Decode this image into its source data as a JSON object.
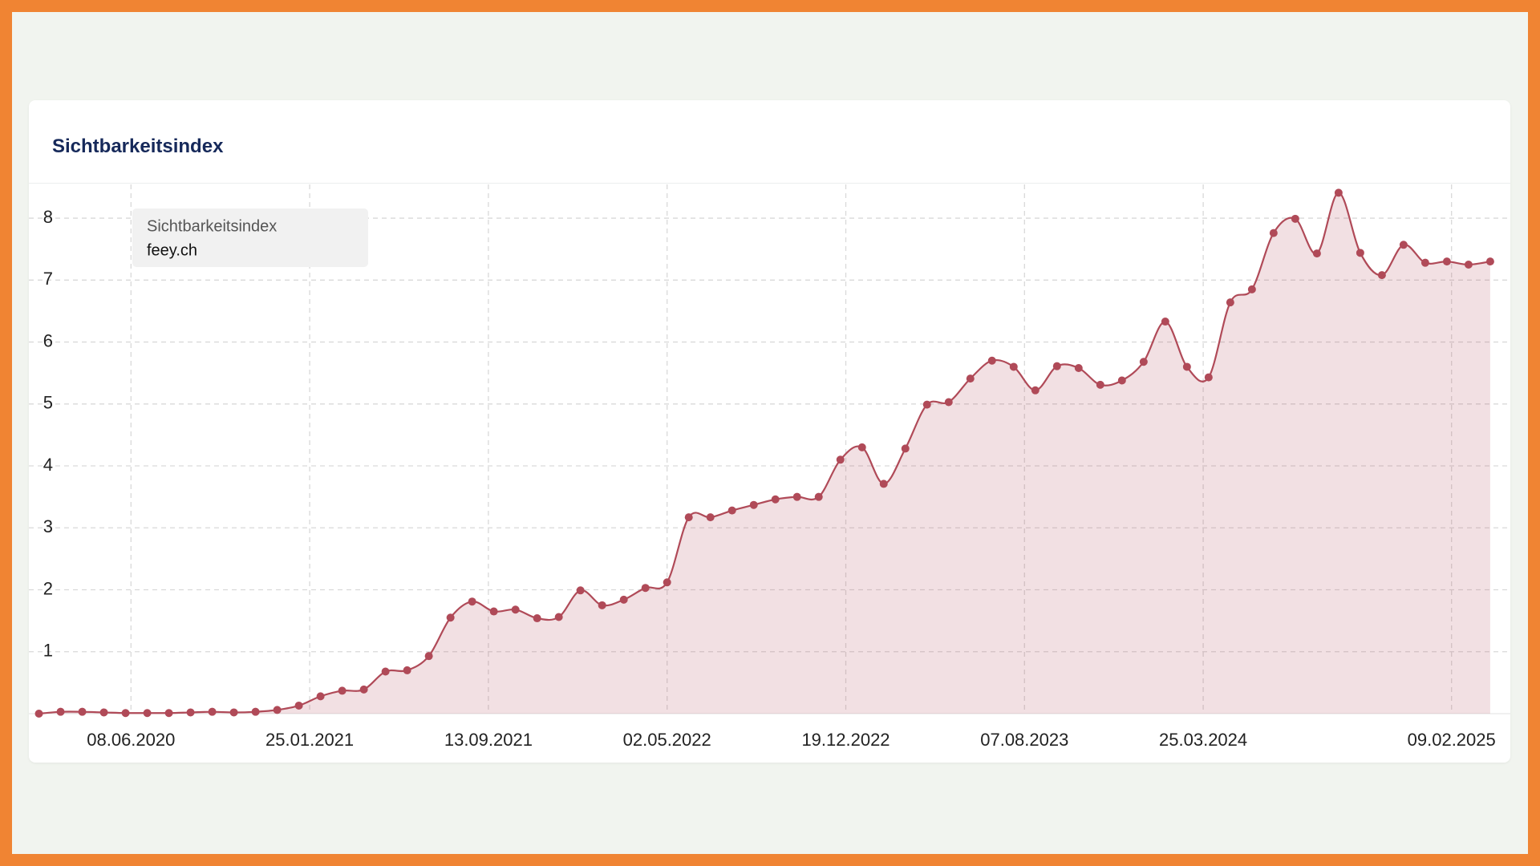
{
  "chart_data": {
    "type": "area",
    "title": "Sichtbarkeitsindex",
    "legend_title": "Sichtbarkeitsindex",
    "legend_position": "top-left",
    "grid": true,
    "x": [
      "10.02.2020",
      "09.03.2020",
      "06.04.2020",
      "04.05.2020",
      "01.06.2020",
      "29.06.2020",
      "27.07.2020",
      "24.08.2020",
      "21.09.2020",
      "19.10.2020",
      "16.11.2020",
      "14.12.2020",
      "11.01.2021",
      "08.02.2021",
      "08.03.2021",
      "05.04.2021",
      "03.05.2021",
      "31.05.2021",
      "28.06.2021",
      "26.07.2021",
      "23.08.2021",
      "20.09.2021",
      "18.10.2021",
      "15.11.2021",
      "13.12.2021",
      "10.01.2022",
      "07.02.2022",
      "07.03.2022",
      "04.04.2022",
      "02.05.2022",
      "30.05.2022",
      "27.06.2022",
      "25.07.2022",
      "22.08.2022",
      "19.09.2022",
      "17.10.2022",
      "14.11.2022",
      "12.12.2022",
      "09.01.2023",
      "06.02.2023",
      "06.03.2023",
      "03.04.2023",
      "01.05.2023",
      "29.05.2023",
      "26.06.2023",
      "24.07.2023",
      "21.08.2023",
      "18.09.2023",
      "16.10.2023",
      "13.11.2023",
      "11.12.2023",
      "08.01.2024",
      "05.02.2024",
      "04.03.2024",
      "01.04.2024",
      "29.04.2024",
      "27.05.2024",
      "24.06.2024",
      "22.07.2024",
      "19.08.2024",
      "16.09.2024",
      "14.10.2024",
      "11.11.2024",
      "09.12.2024",
      "06.01.2025",
      "03.02.2025",
      "03.03.2025",
      "31.03.2025"
    ],
    "series": [
      {
        "name": "feey.ch",
        "color": "#b04a58",
        "values": [
          0.0,
          0.03,
          0.03,
          0.02,
          0.01,
          0.01,
          0.01,
          0.02,
          0.03,
          0.02,
          0.03,
          0.06,
          0.13,
          0.28,
          0.37,
          0.39,
          0.68,
          0.7,
          0.93,
          1.55,
          1.81,
          1.65,
          1.68,
          1.54,
          1.56,
          1.99,
          1.75,
          1.84,
          2.03,
          2.12,
          3.17,
          3.17,
          3.28,
          3.37,
          3.46,
          3.5,
          3.5,
          4.1,
          4.3,
          3.71,
          4.28,
          4.99,
          5.03,
          5.41,
          5.7,
          5.6,
          5.22,
          5.61,
          5.58,
          5.31,
          5.38,
          5.68,
          6.33,
          5.6,
          5.43,
          6.64,
          6.85,
          7.76,
          7.99,
          7.43,
          8.41,
          7.44,
          7.08,
          7.57,
          7.28,
          7.3,
          7.25,
          7.3
        ]
      }
    ],
    "xlim": [
      "28.01.2020",
      "26.04.2025"
    ],
    "xticks": [
      "08.06.2020",
      "25.01.2021",
      "13.09.2021",
      "02.05.2022",
      "19.12.2022",
      "07.08.2023",
      "25.03.2024",
      "09.02.2025"
    ],
    "ylim": [
      0,
      8.7
    ],
    "yticks": [
      1,
      2,
      3,
      4,
      5,
      6,
      7,
      8
    ]
  }
}
